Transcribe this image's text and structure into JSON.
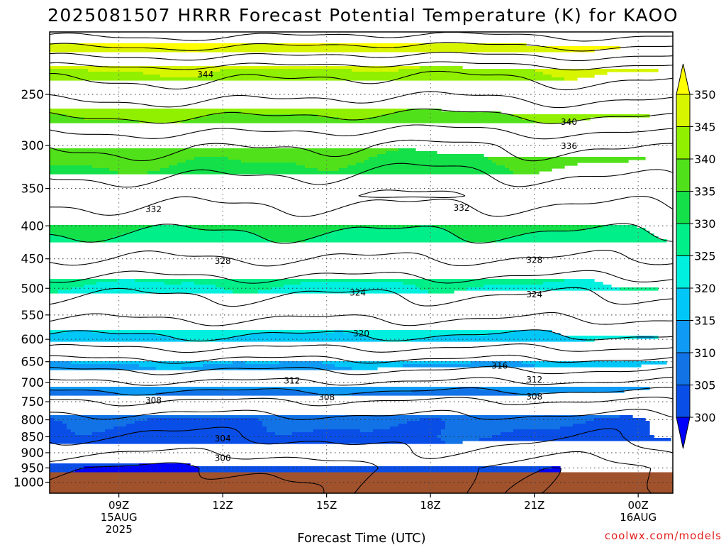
{
  "chart_data": {
    "type": "contour",
    "title": "2025081507 HRRR Forecast Potential Temperature (K) for KAOO",
    "xlabel": "Forecast Time (UTC)",
    "ylabel": "",
    "credit": "coolwx.com/models",
    "x_ticks": [
      {
        "hour": 9,
        "lines": [
          "09Z",
          "15AUG",
          "2025"
        ]
      },
      {
        "hour": 12,
        "lines": [
          "12Z"
        ]
      },
      {
        "hour": 15,
        "lines": [
          "15Z"
        ]
      },
      {
        "hour": 18,
        "lines": [
          "18Z"
        ]
      },
      {
        "hour": 21,
        "lines": [
          "21Z"
        ]
      },
      {
        "hour": 24,
        "lines": [
          "00Z",
          "16AUG"
        ]
      }
    ],
    "x_range_hours": [
      7,
      25
    ],
    "y_axis": {
      "scale": "log-pressure",
      "range_hPa": [
        1040,
        200
      ],
      "inverted": true,
      "ticks": [
        250,
        300,
        350,
        400,
        450,
        500,
        550,
        600,
        650,
        700,
        750,
        800,
        850,
        900,
        950,
        1000
      ]
    },
    "ground_level_hPa": 965,
    "colorbar": {
      "levels": [
        300,
        305,
        310,
        315,
        320,
        325,
        330,
        335,
        340,
        345,
        350
      ],
      "colors": [
        "#0000ff",
        "#0a4ee8",
        "#1273e6",
        "#0f9bf5",
        "#00c7f7",
        "#00f0e0",
        "#00ef88",
        "#14e04a",
        "#50e11a",
        "#90f000",
        "#d8f500",
        "#ffff00"
      ]
    },
    "contour_labels": [
      {
        "text": "344",
        "hour": 11.5,
        "p": 233
      },
      {
        "text": "340",
        "hour": 22.0,
        "p": 276
      },
      {
        "text": "336",
        "hour": 22.0,
        "p": 301
      },
      {
        "text": "332",
        "hour": 10.0,
        "p": 377
      },
      {
        "text": "332",
        "hour": 18.9,
        "p": 375
      },
      {
        "text": "328",
        "hour": 12.0,
        "p": 454
      },
      {
        "text": "328",
        "hour": 21.0,
        "p": 452
      },
      {
        "text": "324",
        "hour": 15.9,
        "p": 508
      },
      {
        "text": "324",
        "hour": 21.0,
        "p": 511
      },
      {
        "text": "320",
        "hour": 16.0,
        "p": 588
      },
      {
        "text": "316",
        "hour": 20.0,
        "p": 660
      },
      {
        "text": "312",
        "hour": 14.0,
        "p": 696
      },
      {
        "text": "312",
        "hour": 21.0,
        "p": 693
      },
      {
        "text": "308",
        "hour": 10.0,
        "p": 747
      },
      {
        "text": "308",
        "hour": 15.0,
        "p": 738
      },
      {
        "text": "308",
        "hour": 21.0,
        "p": 737
      },
      {
        "text": "304",
        "hour": 12.0,
        "p": 856
      },
      {
        "text": "300",
        "hour": 12.0,
        "p": 917
      }
    ]
  }
}
